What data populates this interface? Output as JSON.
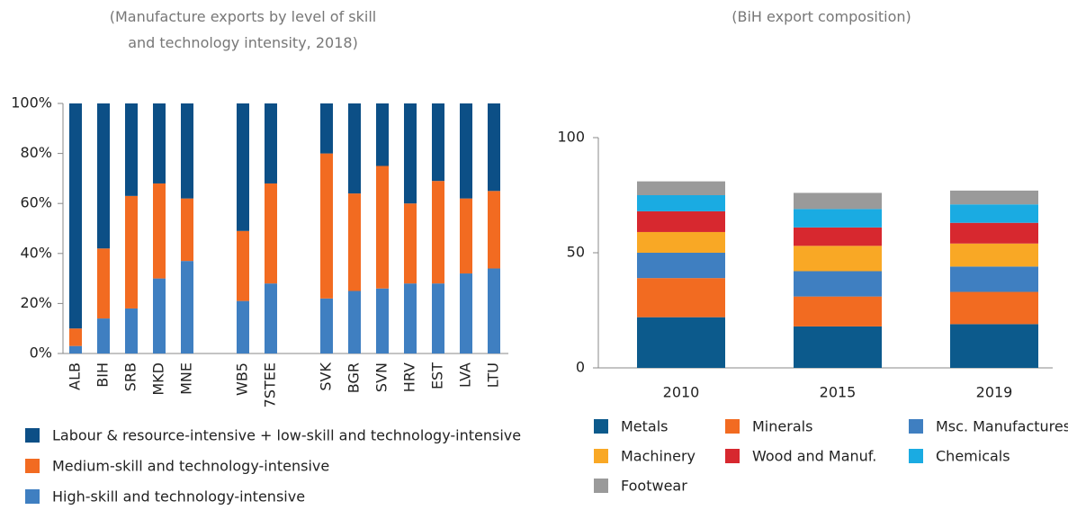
{
  "chart_data": [
    {
      "type": "bar",
      "stacked": true,
      "title": "(Manufacture exports by level of skill and technology intensity, 2018)",
      "categories": [
        "ALB",
        "BIH",
        "SRB",
        "MKD",
        "MNE",
        null,
        "WB5",
        "7STEE",
        null,
        "SVK",
        "BGR",
        "SVN",
        "HRV",
        "EST",
        "LVA",
        "LTU"
      ],
      "series": [
        {
          "name": "High-skill and technology-intensive",
          "color": "#3f7fc1",
          "values": [
            3,
            14,
            18,
            30,
            37,
            null,
            21,
            28,
            null,
            22,
            25,
            26,
            28,
            28,
            32,
            34
          ]
        },
        {
          "name": "Medium-skill and technology-intensive",
          "color": "#f26b21",
          "values": [
            7,
            28,
            45,
            38,
            25,
            null,
            28,
            40,
            null,
            58,
            39,
            49,
            32,
            41,
            30,
            31
          ]
        },
        {
          "name": "Labour & resource-intensive + low-skill and technology-intensive",
          "color": "#0c4f86",
          "values": [
            90,
            58,
            37,
            32,
            38,
            null,
            51,
            32,
            null,
            20,
            36,
            25,
            40,
            31,
            38,
            35
          ]
        }
      ],
      "ylim": [
        0,
        100
      ],
      "yticks": [
        {
          "value": 0,
          "label": "0%"
        },
        {
          "value": 20,
          "label": "20%"
        },
        {
          "value": 40,
          "label": "40%"
        },
        {
          "value": 60,
          "label": "60%"
        },
        {
          "value": 80,
          "label": "80%"
        },
        {
          "value": 100,
          "label": "100%"
        }
      ]
    },
    {
      "type": "bar",
      "stacked": true,
      "title": "(BiH export composition)",
      "categories": [
        "2010",
        "2015",
        "2019"
      ],
      "series": [
        {
          "name": "Metals",
          "color": "#0c5a8c",
          "values": [
            22,
            18,
            19
          ]
        },
        {
          "name": "Minerals",
          "color": "#f26b21",
          "values": [
            17,
            13,
            14
          ]
        },
        {
          "name": "Msc. Manufactures",
          "color": "#3f7fc1",
          "values": [
            11,
            11,
            11
          ]
        },
        {
          "name": "Machinery",
          "color": "#f9a825",
          "values": [
            9,
            11,
            10
          ]
        },
        {
          "name": "Wood and Manuf.",
          "color": "#d7282f",
          "values": [
            9,
            8,
            9
          ]
        },
        {
          "name": "Chemicals",
          "color": "#1aabe2",
          "values": [
            7,
            8,
            8
          ]
        },
        {
          "name": "Footwear",
          "color": "#9a9a9a",
          "values": [
            6,
            7,
            6
          ]
        }
      ],
      "ylim": [
        0,
        100
      ],
      "yticks": [
        0,
        50,
        100
      ]
    }
  ]
}
